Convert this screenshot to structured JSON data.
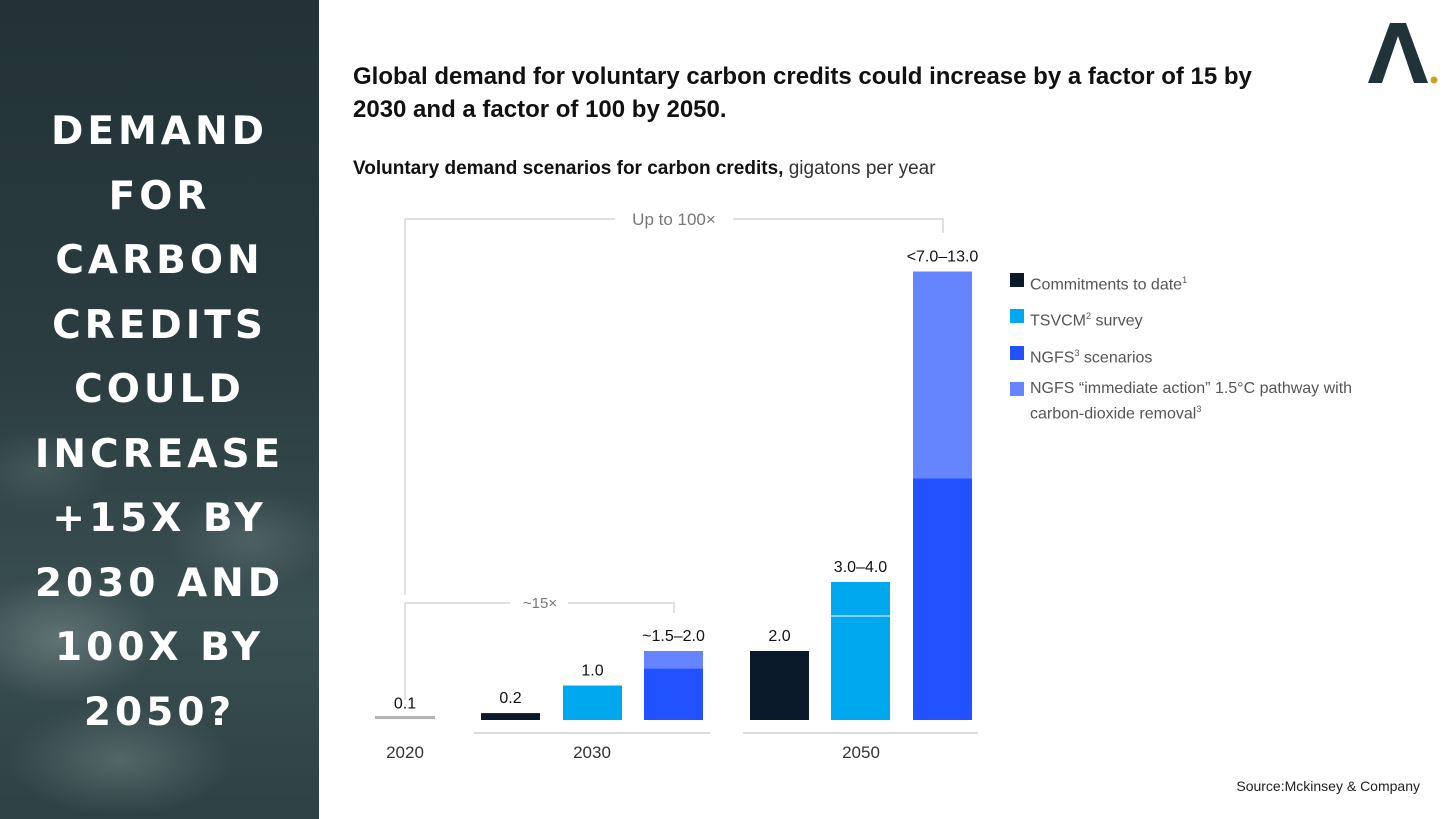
{
  "left_panel": {
    "headline_lines": [
      "DEMAND",
      "FOR",
      "CARBON",
      "CREDITS",
      "COULD",
      "INCREASE",
      "+15X BY",
      "2030 AND",
      "100X BY",
      "2050?"
    ]
  },
  "logo": {
    "glyph": "A"
  },
  "colors": {
    "commitments": "#0a1a2b",
    "tsvcm": "#00a8f0",
    "ngfs": "#2251ff",
    "ngfs_immediate": "#6584ff",
    "baseline_2020": "#b3b3b3",
    "logo_dot": "#c9a227"
  },
  "chart_data": {
    "type": "bar",
    "title": "Global demand for voluntary carbon credits could increase by a factor of 15 by 2030 and a factor of 100 by 2050.",
    "subtitle_bold": "Voluntary demand scenarios for carbon credits,",
    "subtitle_unit": "gigatons per year",
    "ylim": [
      0,
      13
    ],
    "groups": [
      "2020",
      "2030",
      "2050"
    ],
    "bars": [
      {
        "group": "2020",
        "series": "2020",
        "value": 0.1,
        "label": "0.1"
      },
      {
        "group": "2030",
        "series": "Commitments to date",
        "value": 0.2,
        "label": "0.2"
      },
      {
        "group": "2030",
        "series": "TSVCM survey",
        "value": 1.0,
        "label": "1.0"
      },
      {
        "group": "2030",
        "series": "NGFS scenarios",
        "value": 1.5,
        "upper": 2.0,
        "label": "~1.5–2.0"
      },
      {
        "group": "2050",
        "series": "Commitments to date",
        "value": 2.0,
        "label": "2.0"
      },
      {
        "group": "2050",
        "series": "TSVCM survey",
        "value": 3.0,
        "upper": 4.0,
        "label": "3.0–4.0"
      },
      {
        "group": "2050",
        "series": "NGFS scenarios",
        "value": 7.0,
        "upper": 13.0,
        "label": "<7.0–13.0"
      }
    ],
    "annotations": {
      "bracket_2030": "~15×",
      "bracket_2050": "Up to 100×"
    },
    "legend": [
      {
        "key": "commitments",
        "label": "Commitments to date",
        "sup": "1",
        "suffix": ""
      },
      {
        "key": "tsvcm",
        "label": "TSVCM",
        "sup": "2",
        "suffix": " survey"
      },
      {
        "key": "ngfs",
        "label": "NGFS",
        "sup": "3",
        "suffix": " scenarios"
      },
      {
        "key": "ngfs_immediate",
        "label": "NGFS “immediate action” 1.5°C pathway with carbon-dioxide removal",
        "sup": "3",
        "suffix": ""
      }
    ]
  },
  "source": "Source:Mckinsey & Company"
}
